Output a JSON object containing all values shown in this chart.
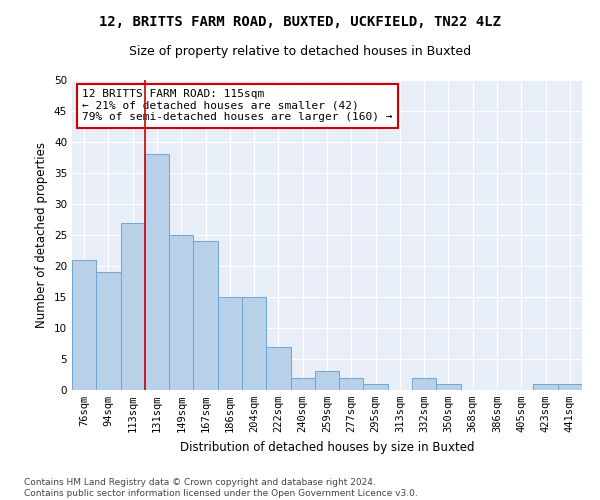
{
  "title1": "12, BRITTS FARM ROAD, BUXTED, UCKFIELD, TN22 4LZ",
  "title2": "Size of property relative to detached houses in Buxted",
  "xlabel": "Distribution of detached houses by size in Buxted",
  "ylabel": "Number of detached properties",
  "categories": [
    "76sqm",
    "94sqm",
    "113sqm",
    "131sqm",
    "149sqm",
    "167sqm",
    "186sqm",
    "204sqm",
    "222sqm",
    "240sqm",
    "259sqm",
    "277sqm",
    "295sqm",
    "313sqm",
    "332sqm",
    "350sqm",
    "368sqm",
    "386sqm",
    "405sqm",
    "423sqm",
    "441sqm"
  ],
  "values": [
    21,
    19,
    27,
    38,
    25,
    24,
    15,
    15,
    7,
    2,
    3,
    2,
    1,
    0,
    2,
    1,
    0,
    0,
    0,
    1,
    1
  ],
  "bar_color": "#b8d0e8",
  "bar_edge_color": "#6ea6d0",
  "vline_x": 2.5,
  "vline_color": "#cc0000",
  "annotation_text": "12 BRITTS FARM ROAD: 115sqm\n← 21% of detached houses are smaller (42)\n79% of semi-detached houses are larger (160) →",
  "annotation_box_color": "#cc0000",
  "ylim": [
    0,
    50
  ],
  "yticks": [
    0,
    5,
    10,
    15,
    20,
    25,
    30,
    35,
    40,
    45,
    50
  ],
  "background_color": "#e8eef8",
  "footer": "Contains HM Land Registry data © Crown copyright and database right 2024.\nContains public sector information licensed under the Open Government Licence v3.0.",
  "title_fontsize": 10,
  "subtitle_fontsize": 9,
  "axis_label_fontsize": 8.5,
  "tick_fontsize": 7.5,
  "annotation_fontsize": 8,
  "footer_fontsize": 6.5
}
